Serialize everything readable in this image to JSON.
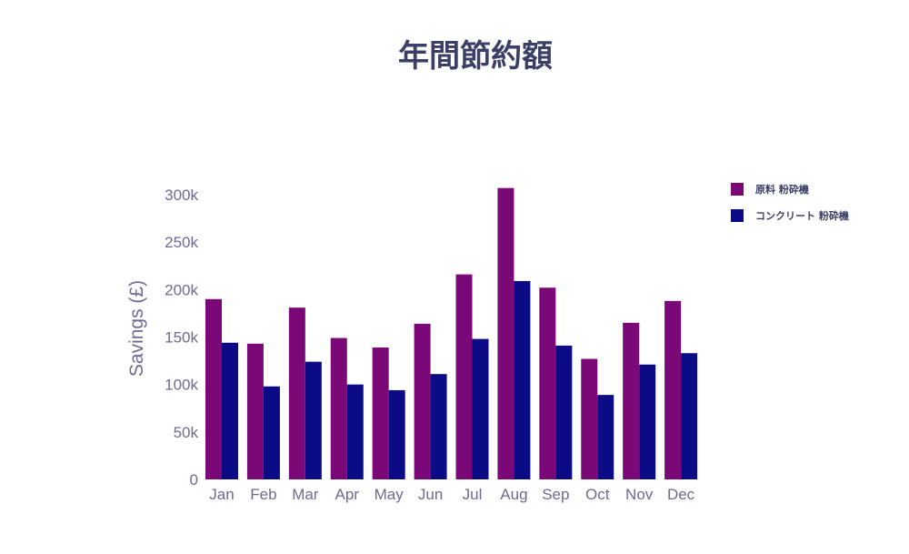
{
  "chart_data": {
    "type": "bar",
    "title": "年間節約額",
    "ylabel": "Savings (£)",
    "xlabel": "",
    "categories": [
      "Jan",
      "Feb",
      "Mar",
      "Apr",
      "May",
      "Jun",
      "Jul",
      "Aug",
      "Sep",
      "Oct",
      "Nov",
      "Dec"
    ],
    "series": [
      {
        "name": "原料 粉砕機",
        "color": "#7a0877",
        "values": [
          190000,
          143000,
          181000,
          149000,
          139000,
          164000,
          216000,
          307000,
          202000,
          127000,
          165000,
          188000
        ]
      },
      {
        "name": "コンクリート 粉砕機",
        "color": "#0b0c85",
        "values": [
          144000,
          98000,
          124000,
          100000,
          94000,
          111000,
          148000,
          209000,
          141000,
          89000,
          121000,
          133000
        ]
      }
    ],
    "ylim": [
      0,
      300000
    ],
    "yticks": [
      {
        "value": 0,
        "label": "0"
      },
      {
        "value": 50000,
        "label": "50k"
      },
      {
        "value": 100000,
        "label": "100k"
      },
      {
        "value": 150000,
        "label": "150k"
      },
      {
        "value": 200000,
        "label": "200k"
      },
      {
        "value": 250000,
        "label": "250k"
      },
      {
        "value": 300000,
        "label": "300k"
      }
    ],
    "grid": false,
    "legend_position": "top-right"
  }
}
